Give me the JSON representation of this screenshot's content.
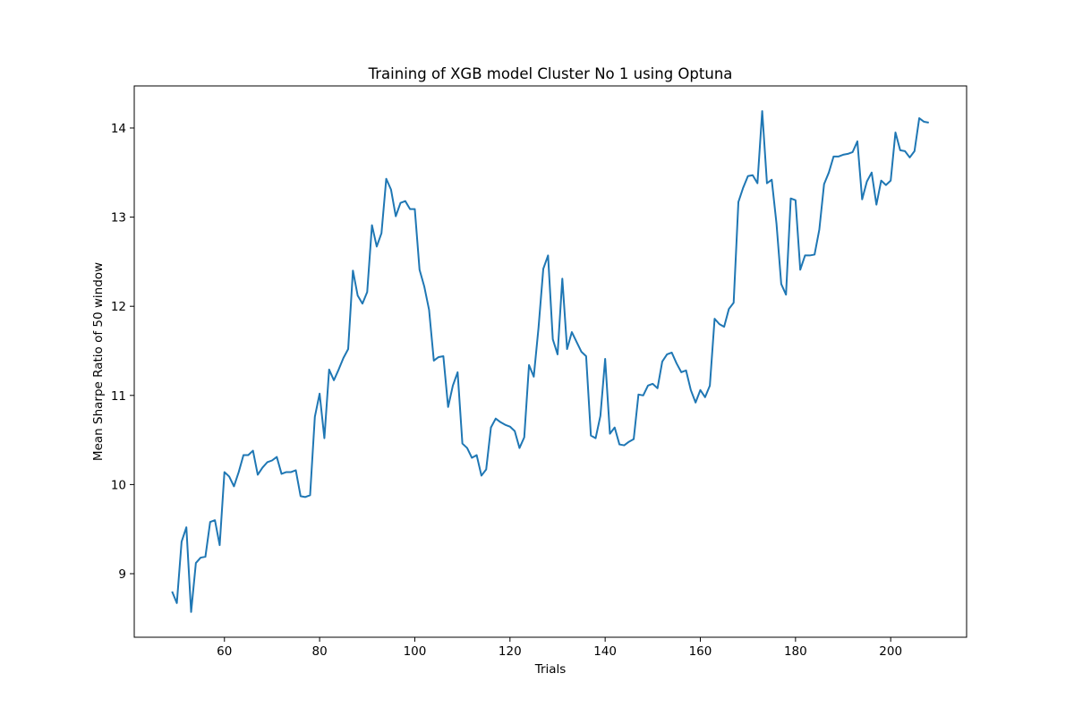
{
  "chart_data": {
    "type": "line",
    "title": "Training of XGB model Cluster No 1 using Optuna",
    "x_label": "Trials",
    "y_label": "Mean Sharpe Ratio of 50 window",
    "x": [
      49,
      50,
      51,
      52,
      53,
      54,
      55,
      56,
      57,
      58,
      59,
      60,
      61,
      62,
      63,
      64,
      65,
      66,
      67,
      68,
      69,
      70,
      71,
      72,
      73,
      74,
      75,
      76,
      77,
      78,
      79,
      80,
      81,
      82,
      83,
      84,
      85,
      86,
      87,
      88,
      89,
      90,
      91,
      92,
      93,
      94,
      95,
      96,
      97,
      98,
      99,
      100,
      101,
      102,
      103,
      104,
      105,
      106,
      107,
      108,
      109,
      110,
      111,
      112,
      113,
      114,
      115,
      116,
      117,
      118,
      119,
      120,
      121,
      122,
      123,
      124,
      125,
      126,
      127,
      128,
      129,
      130,
      131,
      132,
      133,
      134,
      135,
      136,
      137,
      138,
      139,
      140,
      141,
      142,
      143,
      144,
      145,
      146,
      147,
      148,
      149,
      150,
      151,
      152,
      153,
      154,
      155,
      156,
      157,
      158,
      159,
      160,
      161,
      162,
      163,
      164,
      165,
      166,
      167,
      168,
      169,
      170,
      171,
      172,
      173,
      174,
      175,
      176,
      177,
      178,
      179,
      180,
      181,
      182,
      183,
      184,
      185,
      186,
      187,
      188,
      189,
      190,
      191,
      192,
      193,
      194,
      195,
      196,
      197,
      198,
      199,
      200,
      201,
      202,
      203,
      204,
      205,
      206,
      207,
      208
    ],
    "series": [
      {
        "color": "#1f77b4",
        "values": [
          8.8,
          8.67,
          9.36,
          9.52,
          8.57,
          9.12,
          9.18,
          9.19,
          9.58,
          9.6,
          9.32,
          10.14,
          10.09,
          9.98,
          10.14,
          10.33,
          10.33,
          10.38,
          10.11,
          10.19,
          10.25,
          10.27,
          10.31,
          10.12,
          10.14,
          10.14,
          10.16,
          9.87,
          9.86,
          9.88,
          10.76,
          11.02,
          10.52,
          11.29,
          11.17,
          11.29,
          11.42,
          11.52,
          12.4,
          12.12,
          12.03,
          12.16,
          12.91,
          12.67,
          12.82,
          13.43,
          13.31,
          13.01,
          13.16,
          13.18,
          13.09,
          13.09,
          12.41,
          12.22,
          11.96,
          11.39,
          11.43,
          11.44,
          10.87,
          11.11,
          11.26,
          10.46,
          10.41,
          10.3,
          10.33,
          10.1,
          10.17,
          10.64,
          10.74,
          10.7,
          10.67,
          10.65,
          10.6,
          10.41,
          10.53,
          11.34,
          11.21,
          11.76,
          12.42,
          12.57,
          11.63,
          11.46,
          12.31,
          11.52,
          11.71,
          11.6,
          11.49,
          11.44,
          10.55,
          10.52,
          10.77,
          11.41,
          10.57,
          10.64,
          10.45,
          10.44,
          10.48,
          10.51,
          11.01,
          11.0,
          11.11,
          11.13,
          11.08,
          11.38,
          11.46,
          11.48,
          11.36,
          11.26,
          11.28,
          11.06,
          10.92,
          11.06,
          10.98,
          11.11,
          11.86,
          11.8,
          11.77,
          11.97,
          12.04,
          13.17,
          13.33,
          13.46,
          13.47,
          13.38,
          14.19,
          13.38,
          13.42,
          12.93,
          12.25,
          12.13,
          13.21,
          13.19,
          12.41,
          12.57,
          12.57,
          12.58,
          12.86,
          13.37,
          13.5,
          13.68,
          13.68,
          13.7,
          13.71,
          13.73,
          13.85,
          13.2,
          13.4,
          13.5,
          13.14,
          13.41,
          13.36,
          13.41,
          13.95,
          13.75,
          13.74,
          13.67,
          13.74,
          14.11,
          14.07,
          14.06
        ]
      }
    ],
    "xlim": [
      41.05,
      215.95
    ],
    "ylim": [
      8.287,
      14.472
    ],
    "xticks": [
      60,
      80,
      100,
      120,
      140,
      160,
      180,
      200
    ],
    "yticks": [
      9,
      10,
      11,
      12,
      13,
      14
    ],
    "grid": false
  }
}
